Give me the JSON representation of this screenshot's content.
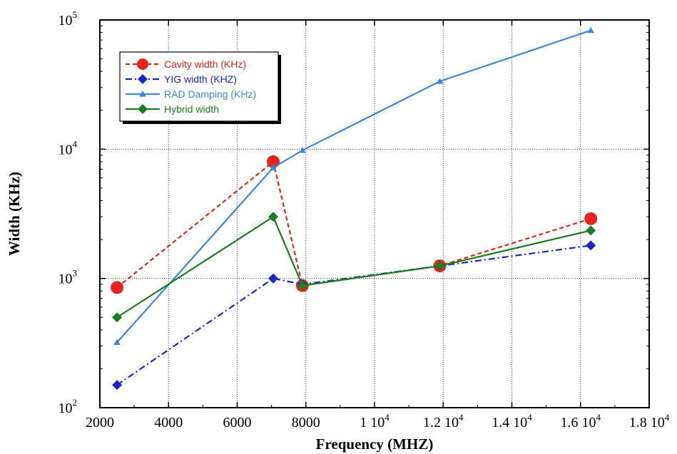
{
  "chart_data": {
    "type": "line",
    "title": "",
    "xlabel": "Frequency (MHZ)",
    "ylabel": "Width (KHz)",
    "xlim": [
      2000,
      18000
    ],
    "ylim": [
      100,
      100000
    ],
    "yscale": "log",
    "grid": true,
    "legend_position": "top-left",
    "x_ticks": [
      {
        "value": 2000,
        "base": "2000",
        "exp": ""
      },
      {
        "value": 4000,
        "base": "4000",
        "exp": ""
      },
      {
        "value": 6000,
        "base": "6000",
        "exp": ""
      },
      {
        "value": 8000,
        "base": "8000",
        "exp": ""
      },
      {
        "value": 10000,
        "base": "1 10",
        "exp": "4"
      },
      {
        "value": 12000,
        "base": "1.2 10",
        "exp": "4"
      },
      {
        "value": 14000,
        "base": "1.4 10",
        "exp": "4"
      },
      {
        "value": 16000,
        "base": "1.6 10",
        "exp": "4"
      },
      {
        "value": 18000,
        "base": "1.8 10",
        "exp": "4"
      }
    ],
    "y_ticks": [
      {
        "value": 100,
        "base": "10",
        "exp": "2"
      },
      {
        "value": 1000,
        "base": "10",
        "exp": "3"
      },
      {
        "value": 10000,
        "base": "10",
        "exp": "4"
      },
      {
        "value": 100000,
        "base": "10",
        "exp": "5"
      }
    ],
    "series": [
      {
        "name": "Cavity width (KHz)",
        "color": "#e8231c",
        "dash": "6,4",
        "marker": "circle",
        "x": [
          2500,
          7050,
          7900,
          11900,
          16300
        ],
        "y": [
          850,
          8000,
          880,
          1250,
          2900
        ]
      },
      {
        "name": "YIG width (KHZ)",
        "color": "#1c25c9",
        "dash": "9,4,2,4",
        "marker": "diamond",
        "x": [
          2500,
          7050,
          7900,
          11900,
          16300
        ],
        "y": [
          150,
          1000,
          900,
          1250,
          1800
        ]
      },
      {
        "name": "RAD Damping (KHz)",
        "color": "#3a86e0",
        "dash": "",
        "marker": "triangle",
        "x": [
          2500,
          7050,
          7900,
          11900,
          16300
        ],
        "y": [
          320,
          7200,
          9800,
          33500,
          83000
        ]
      },
      {
        "name": "Hybrid width",
        "color": "#1b7d22",
        "dash": "",
        "marker": "diamond",
        "x": [
          2500,
          7050,
          7900,
          11900,
          16300
        ],
        "y": [
          500,
          3000,
          880,
          1250,
          2350
        ]
      }
    ]
  }
}
